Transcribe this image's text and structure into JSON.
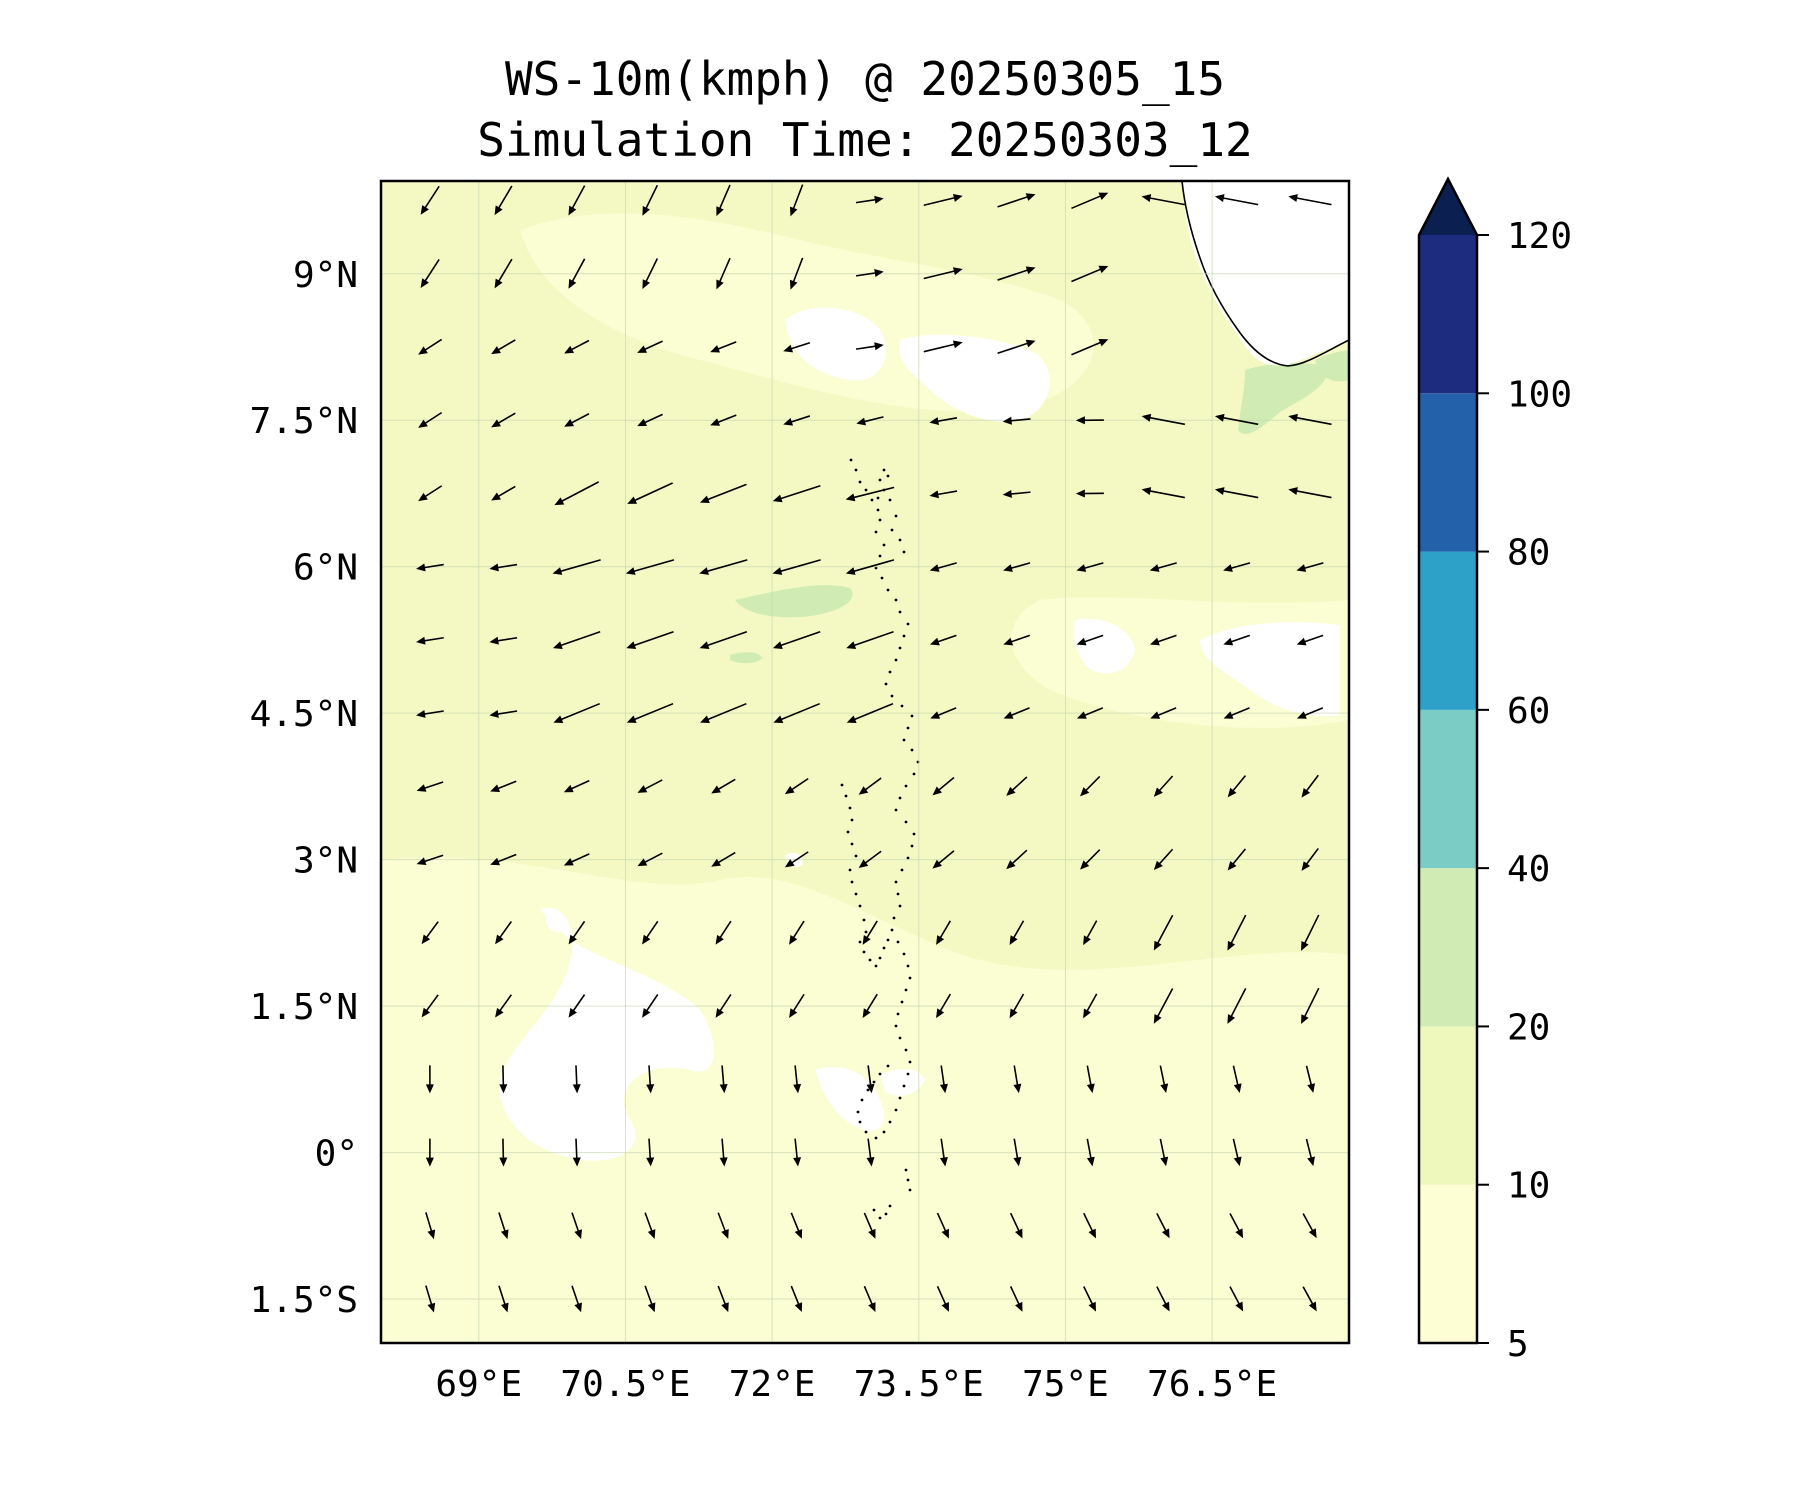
{
  "title": "WS-10m(kmph) @ 20250305_15",
  "subtitle": "Simulation Time: 20250303_12",
  "map": {
    "lat_ticks": [
      {
        "value": 9,
        "label": "9°N"
      },
      {
        "value": 7.5,
        "label": "7.5°N"
      },
      {
        "value": 6,
        "label": "6°N"
      },
      {
        "value": 4.5,
        "label": "4.5°N"
      },
      {
        "value": 3,
        "label": "3°N"
      },
      {
        "value": 1.5,
        "label": "1.5°N"
      },
      {
        "value": 0,
        "label": "0°"
      },
      {
        "value": -1.5,
        "label": "1.5°S"
      }
    ],
    "lon_ticks": [
      {
        "value": 69,
        "label": "69°E"
      },
      {
        "value": 70.5,
        "label": "70.5°E"
      },
      {
        "value": 72,
        "label": "72°E"
      },
      {
        "value": 73.5,
        "label": "73.5°E"
      },
      {
        "value": 75,
        "label": "75°E"
      },
      {
        "value": 76.5,
        "label": "76.5°E"
      }
    ],
    "lon_range": [
      68.0,
      77.9
    ],
    "lat_range": [
      -1.95,
      9.95
    ],
    "grid": true,
    "base_color": "#f4f9c4"
  },
  "colorbar": {
    "levels": [
      5,
      10,
      20,
      40,
      60,
      80,
      100,
      120
    ],
    "labels": [
      "5",
      "10",
      "20",
      "40",
      "60",
      "80",
      "100",
      "120"
    ],
    "colors": [
      "#fdfed4",
      "#eff8bc",
      "#d0ecb4",
      "#7bccc4",
      "#2ea1c9",
      "#2361aa",
      "#1e2c80"
    ],
    "extend_color": "#0b1f51",
    "extend": "max"
  }
}
